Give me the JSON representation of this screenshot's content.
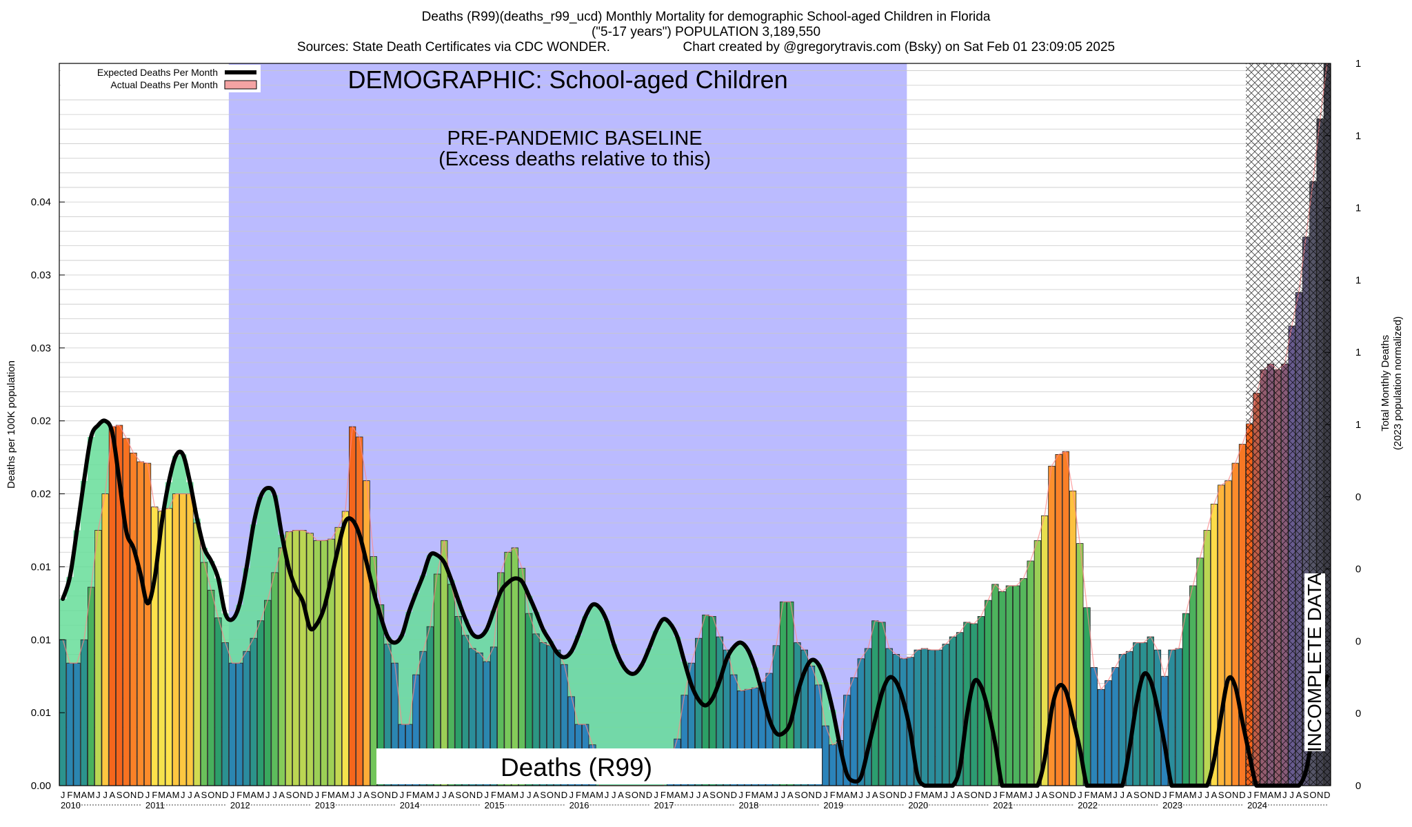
{
  "header": {
    "title": "Deaths (R99)(deaths_r99_ucd) Monthly Mortality for demographic School-aged Children in Florida",
    "subtitle": "(\"5-17 years\") POPULATION 3,189,550",
    "sources": "Sources: State Death Certificates via CDC WONDER.",
    "credit": "Chart created by @gregorytravis.com (Bsky) on Sat Feb 01 23:09:05 2025"
  },
  "annotations": {
    "demographic": "DEMOGRAPHIC: School-aged Children",
    "baseline_line1": "PRE-PANDEMIC BASELINE",
    "baseline_line2": "(Excess deaths relative to this)",
    "cause_label": "Deaths (R99)",
    "incomplete": "INCOMPLETE DATA"
  },
  "legend": {
    "expected": "Expected Deaths Per Month",
    "actual": "Actual Deaths Per Month"
  },
  "colors": {
    "baseline_region": "#bbbbff",
    "expected_line": "#000000",
    "expected_fill": "#66dd99",
    "actual_outline": "#ff8888",
    "bar_low": "#2b83ba",
    "bar_mid": "#2ca25f",
    "bar_yellow": "#fee44c",
    "bar_orange": "#fc8d2c",
    "bar_high": "#f4601a",
    "bar_purple": "#6b5b95"
  },
  "chart_data": {
    "type": "bar",
    "ylabel": "Deaths per 100K population",
    "y2label_line1": "Total Monthly Deaths",
    "y2label_line2": "(2023 population normalized)",
    "ylim": [
      0,
      0.0495
    ],
    "y_ticks": [
      0,
      0.005,
      0.01,
      0.015,
      0.02,
      0.025,
      0.03,
      0.035,
      0.04
    ],
    "y_tick_labels": [
      "0.00",
      "0.01",
      "0.01",
      "0.01",
      "0.02",
      "0.02",
      "0.03",
      "0.03",
      "0.04"
    ],
    "y2_tick_labels": [
      "0",
      "0",
      "0",
      "0",
      "0",
      "1",
      "1",
      "1",
      "1",
      "1",
      "1"
    ],
    "month_letters": [
      "J",
      "F",
      "M",
      "A",
      "M",
      "J",
      "J",
      "A",
      "S",
      "O",
      "N",
      "D"
    ],
    "years": [
      "2010",
      "2011",
      "2012",
      "2013",
      "2014",
      "2015",
      "2016",
      "2017",
      "2018",
      "2019",
      "2020",
      "2021",
      "2022",
      "2023",
      "2024"
    ],
    "baseline_period": [
      "2012-01",
      "2019-12"
    ],
    "incomplete_period": [
      "2024-01",
      "2024-12"
    ],
    "grid": true,
    "legend_position": "top-left",
    "series": [
      {
        "name": "Actual Deaths Per Month",
        "kind": "bars",
        "values": [
          0.01,
          0.0084,
          0.0084,
          0.01,
          0.0136,
          0.0175,
          0.02,
          0.0246,
          0.0247,
          0.0238,
          0.0228,
          0.0222,
          0.0221,
          0.0191,
          0.0188,
          0.019,
          0.02,
          0.02,
          0.02,
          0.018,
          0.0153,
          0.0134,
          0.0115,
          0.0098,
          0.0084,
          0.0084,
          0.0092,
          0.0101,
          0.0113,
          0.0127,
          0.0146,
          0.0163,
          0.0174,
          0.0175,
          0.0175,
          0.0173,
          0.0168,
          0.0168,
          0.0169,
          0.0177,
          0.0188,
          0.0246,
          0.0239,
          0.0209,
          0.0157,
          0.0124,
          0.0097,
          0.0084,
          0.0042,
          0.0042,
          0.0076,
          0.0092,
          0.0109,
          0.0145,
          0.0168,
          0.0138,
          0.0116,
          0.0103,
          0.0094,
          0.0091,
          0.0085,
          0.0095,
          0.0146,
          0.016,
          0.0163,
          0.0149,
          0.0118,
          0.0104,
          0.0098,
          0.0096,
          0.0093,
          0.0083,
          0.0061,
          0.0042,
          0.0042,
          0.0028,
          0,
          0,
          0,
          0,
          0,
          0,
          0,
          0,
          0,
          0,
          0.0016,
          0.0032,
          0.0062,
          0.0084,
          0.0101,
          0.0117,
          0.0116,
          0.0102,
          0.0093,
          0.0076,
          0.0065,
          0.0066,
          0.0067,
          0.0071,
          0.0077,
          0.0096,
          0.0126,
          0.0126,
          0.0098,
          0.0093,
          0.0082,
          0.0069,
          0.0041,
          0.0028,
          0.0031,
          0.0062,
          0.0074,
          0.0087,
          0.0094,
          0.0113,
          0.0112,
          0.0094,
          0.009,
          0.0087,
          0.0088,
          0.0093,
          0.0094,
          0.0093,
          0.0093,
          0.0097,
          0.0102,
          0.0105,
          0.0112,
          0.0111,
          0.0116,
          0.0127,
          0.0138,
          0.0133,
          0.0137,
          0.0137,
          0.0142,
          0.0154,
          0.0168,
          0.0185,
          0.0219,
          0.0227,
          0.0229,
          0.0202,
          0.0166,
          0.0122,
          0.0081,
          0.0066,
          0.0072,
          0.0081,
          0.009,
          0.0092,
          0.0098,
          0.0098,
          0.0102,
          0.0093,
          0.0075,
          0.0093,
          0.0094,
          0.0118,
          0.0137,
          0.0156,
          0.0175,
          0.0193,
          0.0206,
          0.0209,
          0.0221,
          0.0234,
          0.0248,
          0.0269,
          0.0285,
          0.0289,
          0.0285,
          0.0289,
          0.0315,
          0.0338,
          0.0376,
          0.0414,
          0.0457,
          0.0495
        ]
      },
      {
        "name": "Expected Deaths Per Month",
        "kind": "line",
        "values": [
          0.0128,
          0.0143,
          0.0175,
          0.0209,
          0.0239,
          0.0247,
          0.025,
          0.0242,
          0.0209,
          0.0174,
          0.0163,
          0.0145,
          0.0125,
          0.0142,
          0.018,
          0.0208,
          0.0226,
          0.0227,
          0.0208,
          0.0183,
          0.0163,
          0.0154,
          0.0142,
          0.0118,
          0.0114,
          0.0124,
          0.0149,
          0.0179,
          0.0198,
          0.0204,
          0.0199,
          0.0172,
          0.0149,
          0.0135,
          0.0126,
          0.0108,
          0.0111,
          0.0122,
          0.0142,
          0.0163,
          0.0181,
          0.0182,
          0.0172,
          0.0153,
          0.0133,
          0.0116,
          0.0102,
          0.0098,
          0.0103,
          0.0119,
          0.0132,
          0.0144,
          0.0158,
          0.0158,
          0.0153,
          0.0141,
          0.0127,
          0.0114,
          0.0104,
          0.0102,
          0.0107,
          0.012,
          0.0133,
          0.0139,
          0.0142,
          0.014,
          0.013,
          0.0119,
          0.0107,
          0.0099,
          0.0091,
          0.0088,
          0.0092,
          0.0103,
          0.0116,
          0.0124,
          0.0122,
          0.0113,
          0.0097,
          0.0085,
          0.0078,
          0.0077,
          0.0083,
          0.0094,
          0.0106,
          0.0114,
          0.0111,
          0.0102,
          0.0085,
          0.0069,
          0.0059,
          0.0055,
          0.006,
          0.0072,
          0.0087,
          0.0095,
          0.0098,
          0.0093,
          0.0081,
          0.0064,
          0.0046,
          0.0036,
          0.0036,
          0.0043,
          0.0063,
          0.0078,
          0.0086,
          0.0083,
          0.0071,
          0.0052,
          0.0028,
          0.0008,
          0.0003,
          0.0006,
          0.0025,
          0.0045,
          0.0064,
          0.0074,
          0.0071,
          0.0058,
          0.0037,
          0.0007,
          0,
          0,
          0,
          0,
          0,
          0.0012,
          0.0048,
          0.0071,
          0.0068,
          0.0052,
          0.0029,
          0,
          0,
          0,
          0,
          0,
          0,
          0.0018,
          0.0052,
          0.0068,
          0.0065,
          0.0046,
          0.0025,
          0,
          0,
          0,
          0,
          0,
          0,
          0.0025,
          0.0056,
          0.0076,
          0.0072,
          0.0053,
          0.0028,
          0,
          0,
          0,
          0,
          0,
          0,
          0.0018,
          0.0048,
          0.0073,
          0.0068,
          0.0044,
          0.0021,
          0,
          0,
          0,
          0,
          0,
          0,
          0,
          0.001,
          0.0036,
          0.0059,
          0.0075
        ]
      }
    ]
  }
}
